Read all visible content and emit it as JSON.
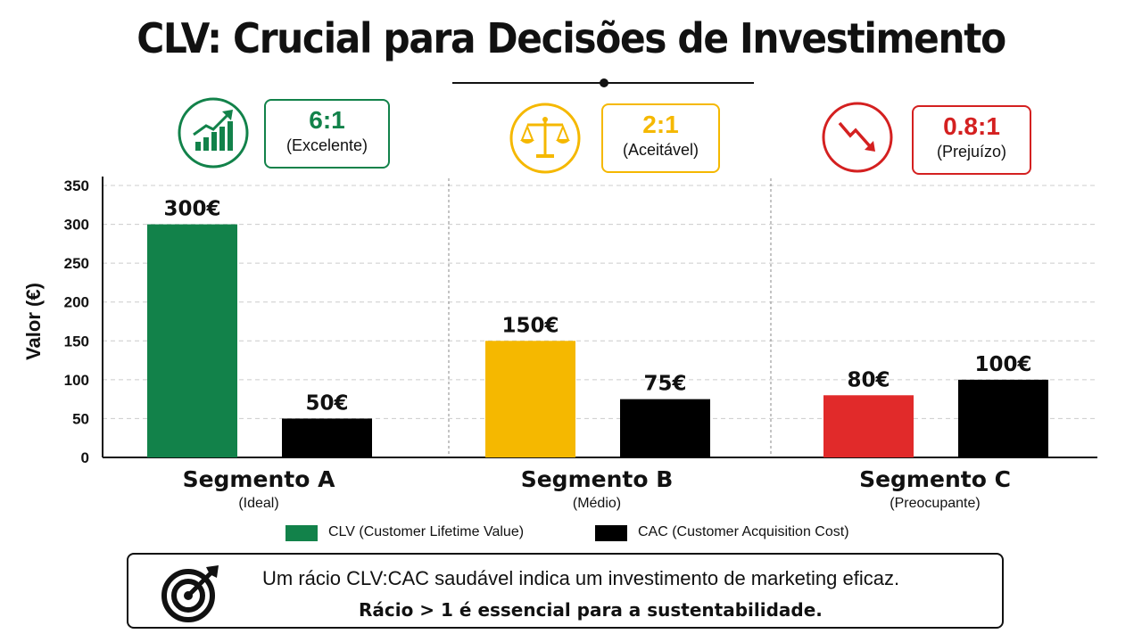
{
  "title": "CLV: Crucial para Decisões de Investimento",
  "colors": {
    "green": "#12824a",
    "yellow": "#f5b800",
    "red": "#e12a2a",
    "black": "#000000",
    "grid": "#cccccc"
  },
  "ratios": [
    {
      "ratio": "6:1",
      "label": "(Excelente)",
      "icon": "growth-chart-icon",
      "color": "#12824a"
    },
    {
      "ratio": "2:1",
      "label": "(Aceitável)",
      "icon": "balance-scale-icon",
      "color": "#f5b800"
    },
    {
      "ratio": "0.8:1",
      "label": "(Prejuízo)",
      "icon": "decline-arrow-icon",
      "color": "#d42020"
    }
  ],
  "chart_data": {
    "type": "bar",
    "ylabel": "Valor (€)",
    "xlabel": "",
    "ylim": [
      0,
      350
    ],
    "yticks": [
      0,
      50,
      100,
      150,
      200,
      250,
      300,
      350
    ],
    "grid": true,
    "categories": [
      "Segmento A",
      "Segmento B",
      "Segmento C"
    ],
    "category_subtitles": [
      "(Ideal)",
      "(Médio)",
      "(Preocupante)"
    ],
    "series": [
      {
        "name": "CLV (Customer Lifetime Value)",
        "values": [
          300,
          150,
          80
        ],
        "labels": [
          "300€",
          "150€",
          "80€"
        ],
        "colors": [
          "#12824a",
          "#f5b800",
          "#e12a2a"
        ]
      },
      {
        "name": "CAC (Customer Acquisition Cost)",
        "values": [
          50,
          75,
          100
        ],
        "labels": [
          "50€",
          "75€",
          "100€"
        ],
        "colors": [
          "#000000",
          "#000000",
          "#000000"
        ]
      }
    ]
  },
  "legend": {
    "clv": "CLV (Customer Lifetime Value)",
    "cac": "CAC (Customer Acquisition Cost)"
  },
  "footer": {
    "line1": "Um rácio CLV:CAC saudável indica um investimento de marketing eficaz.",
    "line2": "Rácio > 1 é essencial para a sustentabilidade.",
    "icon": "target-icon"
  }
}
